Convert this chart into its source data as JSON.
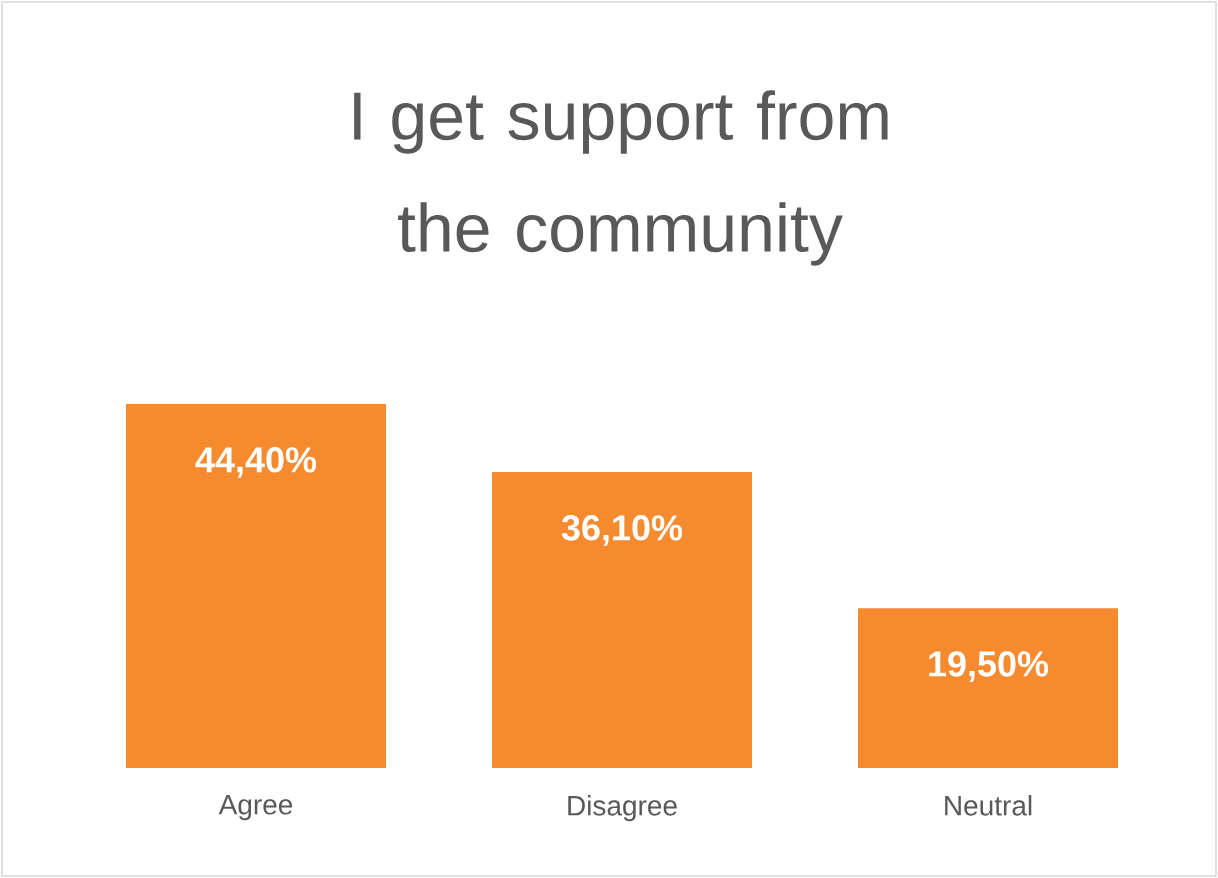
{
  "chart_data": {
    "type": "bar",
    "title": "I get support from the community",
    "categories": [
      "Agree",
      "Disagree",
      "Neutral"
    ],
    "values": [
      44.4,
      36.1,
      19.5
    ],
    "value_labels": [
      "44,40%",
      "36,10%",
      "19,50%"
    ],
    "color": "#f58a2f"
  }
}
